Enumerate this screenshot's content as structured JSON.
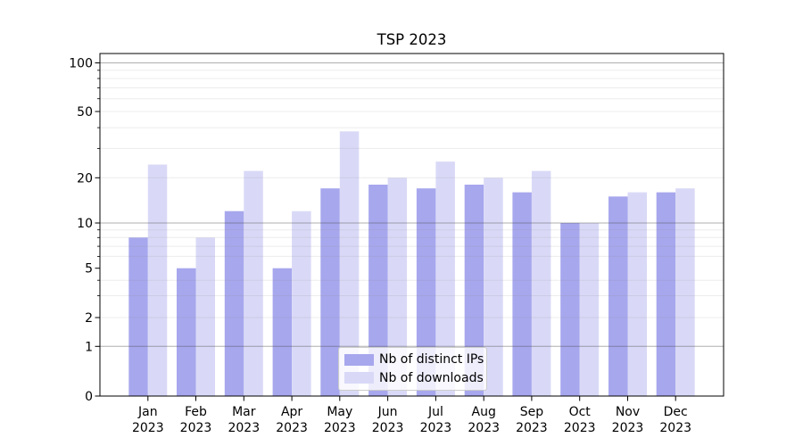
{
  "chart_data": {
    "type": "bar",
    "title": "TSP 2023",
    "categories": [
      "Jan 2023",
      "Feb 2023",
      "Mar 2023",
      "Apr 2023",
      "May 2023",
      "Jun 2023",
      "Jul 2023",
      "Aug 2023",
      "Sep 2023",
      "Oct 2023",
      "Nov 2023",
      "Dec 2023"
    ],
    "series": [
      {
        "name": "Nb of distinct IPs",
        "color": "#a7a7ee",
        "values": [
          8,
          5,
          12,
          5,
          17,
          18,
          17,
          18,
          16,
          10,
          15,
          16
        ]
      },
      {
        "name": "Nb of downloads",
        "color": "#d9d9f7",
        "values": [
          24,
          8,
          22,
          12,
          38,
          20,
          25,
          20,
          22,
          10,
          16,
          17
        ]
      }
    ],
    "xlabel": "",
    "ylabel": "",
    "yscale": "symlog",
    "ylim": [
      0,
      110
    ],
    "yticks": [
      0,
      1,
      2,
      5,
      10,
      20,
      50,
      100
    ],
    "ytick_labels": [
      "0",
      "1",
      "2",
      "5",
      "10",
      "20",
      "50",
      "100"
    ],
    "major_gridline_values": [
      1,
      10,
      100
    ],
    "minor_gridline_values": [
      2,
      3,
      4,
      6,
      7,
      8,
      9,
      20,
      30,
      40,
      50,
      60,
      70,
      80,
      90
    ],
    "grid": true,
    "legend_position": "lower center",
    "colors": {
      "axis": "#000000",
      "major_grid": "#b3b3b3",
      "minor_grid": "#e9e9e9",
      "text": "#000000",
      "background": "#ffffff"
    }
  }
}
